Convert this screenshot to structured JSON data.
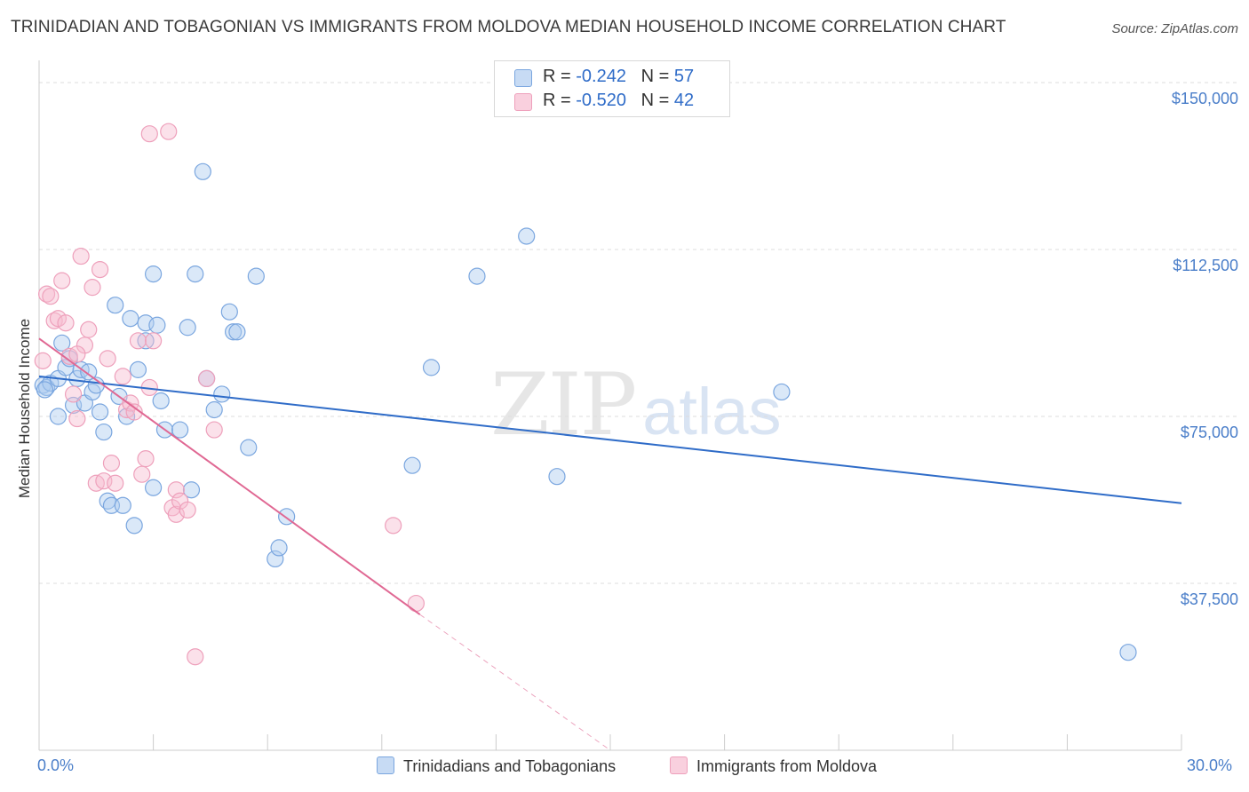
{
  "title": "TRINIDADIAN AND TOBAGONIAN VS IMMIGRANTS FROM MOLDOVA MEDIAN HOUSEHOLD INCOME CORRELATION CHART",
  "source": "Source: ZipAtlas.com",
  "watermark": {
    "zip": "ZIP",
    "atlas": "atlas"
  },
  "legend_top": [
    {
      "r_label": "R =",
      "r_value": "-0.242",
      "n_label": "N =",
      "n_value": "57"
    },
    {
      "r_label": "R =",
      "r_value": "-0.520",
      "n_label": "N =",
      "n_value": "42"
    }
  ],
  "colors": {
    "blue_fill": "#aecbf0",
    "blue_stroke": "#7aa6df",
    "blue_line": "#2f6cc8",
    "pink_fill": "#f6bcd0",
    "pink_stroke": "#eea0bb",
    "pink_line": "#e06893",
    "tick_text": "#4a7ec9",
    "grid": "#dddddd"
  },
  "chart_data": {
    "type": "scatter",
    "title": "TRINIDADIAN AND TOBAGONIAN VS IMMIGRANTS FROM MOLDOVA MEDIAN HOUSEHOLD INCOME CORRELATION CHART",
    "xlabel": "",
    "ylabel": "Median Household Income",
    "xlim": [
      0,
      30
    ],
    "ylim": [
      0,
      153000
    ],
    "x_tick_labels": [
      "0.0%",
      "30.0%"
    ],
    "y_ticks": [
      37500,
      75000,
      112500,
      150000
    ],
    "y_tick_labels": [
      "$37,500",
      "$75,000",
      "$112,500",
      "$150,000"
    ],
    "legend_position": "bottom",
    "series": [
      {
        "name": "Trinidadians and Tobagonians",
        "r": -0.242,
        "n": 57,
        "trend": {
          "x": [
            0,
            30
          ],
          "y": [
            84000,
            55500
          ]
        },
        "points": [
          [
            0.1,
            82000
          ],
          [
            0.2,
            81500
          ],
          [
            0.3,
            82500
          ],
          [
            0.5,
            83500
          ],
          [
            0.5,
            75000
          ],
          [
            0.6,
            91500
          ],
          [
            0.7,
            86000
          ],
          [
            0.8,
            88000
          ],
          [
            0.9,
            77500
          ],
          [
            1.0,
            83500
          ],
          [
            1.1,
            85500
          ],
          [
            1.2,
            78000
          ],
          [
            1.3,
            85000
          ],
          [
            1.4,
            80500
          ],
          [
            1.5,
            82000
          ],
          [
            1.6,
            76000
          ],
          [
            1.7,
            71500
          ],
          [
            1.8,
            56000
          ],
          [
            1.9,
            55000
          ],
          [
            2.0,
            100000
          ],
          [
            2.1,
            79500
          ],
          [
            2.2,
            55000
          ],
          [
            2.3,
            75000
          ],
          [
            2.4,
            97000
          ],
          [
            2.5,
            50500
          ],
          [
            2.6,
            85500
          ],
          [
            2.8,
            96000
          ],
          [
            2.8,
            92000
          ],
          [
            3.0,
            59000
          ],
          [
            3.1,
            95500
          ],
          [
            3.2,
            78500
          ],
          [
            3.3,
            72000
          ],
          [
            3.0,
            107000
          ],
          [
            3.7,
            72000
          ],
          [
            3.9,
            95000
          ],
          [
            4.0,
            58500
          ],
          [
            4.1,
            107000
          ],
          [
            4.3,
            130000
          ],
          [
            4.4,
            83500
          ],
          [
            4.6,
            76500
          ],
          [
            4.8,
            80000
          ],
          [
            5.0,
            98500
          ],
          [
            5.1,
            94000
          ],
          [
            5.2,
            94000
          ],
          [
            5.5,
            68000
          ],
          [
            5.7,
            106500
          ],
          [
            6.2,
            43000
          ],
          [
            6.3,
            45500
          ],
          [
            6.5,
            52500
          ],
          [
            9.8,
            64000
          ],
          [
            10.3,
            86000
          ],
          [
            11.5,
            106500
          ],
          [
            12.8,
            115500
          ],
          [
            13.6,
            61500
          ],
          [
            19.5,
            80500
          ],
          [
            28.6,
            22000
          ],
          [
            0.15,
            81000
          ]
        ]
      },
      {
        "name": "Immigrants from Moldova",
        "r": -0.52,
        "n": 42,
        "trend": {
          "x": [
            0,
            10
          ],
          "y": [
            92500,
            30500
          ]
        },
        "trend_dashed": {
          "x": [
            10,
            15
          ],
          "y": [
            30500,
            0
          ]
        },
        "points": [
          [
            0.1,
            87500
          ],
          [
            0.2,
            102500
          ],
          [
            0.3,
            102000
          ],
          [
            0.4,
            96500
          ],
          [
            0.5,
            97000
          ],
          [
            0.6,
            105500
          ],
          [
            0.7,
            96000
          ],
          [
            0.8,
            88500
          ],
          [
            0.9,
            80000
          ],
          [
            1.0,
            74500
          ],
          [
            1.1,
            111000
          ],
          [
            1.2,
            91000
          ],
          [
            1.3,
            94500
          ],
          [
            1.4,
            104000
          ],
          [
            1.5,
            60000
          ],
          [
            1.6,
            108000
          ],
          [
            1.7,
            60500
          ],
          [
            1.8,
            88000
          ],
          [
            1.9,
            64500
          ],
          [
            2.0,
            60000
          ],
          [
            2.2,
            84000
          ],
          [
            2.3,
            76500
          ],
          [
            2.4,
            78000
          ],
          [
            2.5,
            76000
          ],
          [
            2.6,
            92000
          ],
          [
            2.7,
            62000
          ],
          [
            2.8,
            65500
          ],
          [
            2.9,
            81500
          ],
          [
            2.9,
            138500
          ],
          [
            3.0,
            92000
          ],
          [
            3.4,
            139000
          ],
          [
            3.5,
            54500
          ],
          [
            3.6,
            58500
          ],
          [
            3.6,
            53000
          ],
          [
            3.7,
            56000
          ],
          [
            3.9,
            54000
          ],
          [
            4.1,
            21000
          ],
          [
            4.4,
            83500
          ],
          [
            4.6,
            72000
          ],
          [
            9.3,
            50500
          ],
          [
            9.9,
            33000
          ],
          [
            1.0,
            89000
          ]
        ]
      }
    ]
  },
  "legend_bottom": [
    "Trinidadians and Tobagonians",
    "Immigrants from Moldova"
  ]
}
